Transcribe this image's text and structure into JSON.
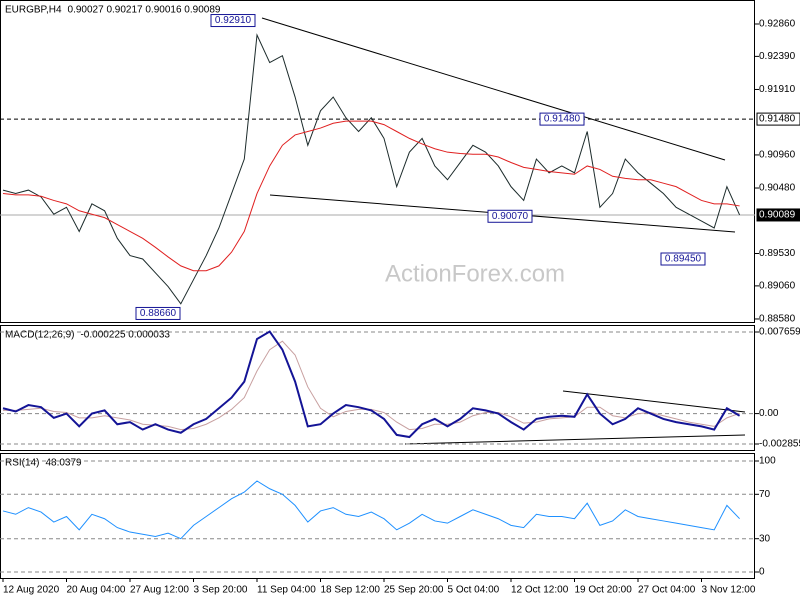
{
  "chart_data": [
    {
      "type": "line",
      "title": "EURGBP,H4",
      "subtitle": "0.90027 0.90217 0.90016 0.90089",
      "watermark": "ActionForex.com",
      "ylim": [
        0.88536,
        0.93208
      ],
      "yticks": [
        {
          "value": 0.8858,
          "label": "0.88580"
        },
        {
          "value": 0.8906,
          "label": "0.89060"
        },
        {
          "value": 0.8953,
          "label": "0.89530"
        },
        {
          "value": 0.9048,
          "label": "0.90480"
        },
        {
          "value": 0.9096,
          "label": "0.90960"
        },
        {
          "value": 0.9191,
          "label": "0.91910"
        },
        {
          "value": 0.9239,
          "label": "0.92390"
        },
        {
          "value": 0.9286,
          "label": "0.92860"
        }
      ],
      "price_markers": [
        {
          "value": 0.9148,
          "label": "0.91480"
        },
        {
          "value": 0.90089,
          "label": "0.90089"
        }
      ],
      "annotations": [
        {
          "value": 0.9291,
          "label": "0.92910"
        },
        {
          "value": 0.8866,
          "label": "0.88660"
        },
        {
          "value": 0.9148,
          "label": "0.91480"
        },
        {
          "value": 0.9007,
          "label": "0.90070"
        },
        {
          "value": 0.8945,
          "label": "0.89450"
        }
      ],
      "series": [
        {
          "color": "#1c2b2b",
          "values": [
            0.9045,
            0.904,
            0.9045,
            0.9035,
            0.901,
            0.902,
            0.8985,
            0.9025,
            0.9015,
            0.8975,
            0.895,
            0.8945,
            0.8925,
            0.8905,
            0.888,
            0.8915,
            0.895,
            0.899,
            0.904,
            0.909,
            0.927,
            0.923,
            0.924,
            0.918,
            0.911,
            0.916,
            0.918,
            0.915,
            0.913,
            0.915,
            0.912,
            0.905,
            0.91,
            0.912,
            0.908,
            0.906,
            0.9085,
            0.911,
            0.91,
            0.908,
            0.905,
            0.903,
            0.909,
            0.907,
            0.908,
            0.907,
            0.913,
            0.902,
            0.904,
            0.909,
            0.907,
            0.9055,
            0.904,
            0.902,
            0.901,
            0.9,
            0.899,
            0.905,
            0.90089
          ]
        },
        {
          "color": "#e02020",
          "values": [
            0.904,
            0.9038,
            0.9038,
            0.9036,
            0.903,
            0.9025,
            0.9015,
            0.901,
            0.9005,
            0.8995,
            0.8985,
            0.8975,
            0.8962,
            0.8948,
            0.8935,
            0.8928,
            0.8928,
            0.8935,
            0.8955,
            0.8985,
            0.904,
            0.908,
            0.911,
            0.9125,
            0.913,
            0.9135,
            0.9142,
            0.9145,
            0.9145,
            0.9145,
            0.914,
            0.913,
            0.912,
            0.9112,
            0.9105,
            0.91,
            0.9098,
            0.9097,
            0.9097,
            0.9093,
            0.9085,
            0.9078,
            0.9075,
            0.9072,
            0.907,
            0.9068,
            0.908,
            0.9075,
            0.9065,
            0.9062,
            0.906,
            0.906,
            0.9055,
            0.905,
            0.904,
            0.903,
            0.9025,
            0.9025,
            0.9022
          ]
        }
      ]
    },
    {
      "type": "line",
      "title": "MACD(12,26,9)",
      "subtitle": "-0.000225 0.000033",
      "ylim": [
        -0.003418,
        0.008316
      ],
      "yticks": [
        -0.002855,
        {
          "value": 0,
          "label": "0.00"
        },
        0.007659
      ],
      "series": [
        {
          "color": "#c8a0a0",
          "values": [
            0.0003,
            0.0003,
            0.0004,
            0.0005,
            0.0002,
            0.0001,
            -0.0004,
            -0.0004,
            -0.0002,
            -0.0004,
            -0.0006,
            -0.001,
            -0.0011,
            -0.0012,
            -0.0015,
            -0.0014,
            -0.001,
            -0.0004,
            0.0004,
            0.0015,
            0.004,
            0.006,
            0.0068,
            0.0055,
            0.0025,
            0.0005,
            -0.0003,
            0.0002,
            0.0004,
            0.0004,
            0.0001,
            -0.0008,
            -0.0015,
            -0.0014,
            -0.001,
            -0.001,
            -0.0008,
            -0.0002,
            0.0001,
            0.0001,
            -0.0003,
            -0.0009,
            -0.0008,
            -0.0005,
            -0.0004,
            -0.0003,
            0.0006,
            0.0006,
            -0.0002,
            -0.0004,
            0,
            0.0001,
            -0.0002,
            -0.0005,
            -0.0008,
            -0.001,
            -0.0012,
            -0.0004,
            3e-05
          ]
        },
        {
          "color": "#141496",
          "values": [
            0.0005,
            0.0002,
            0.0008,
            0.0006,
            -0.0004,
            0,
            -0.0012,
            0,
            0.0003,
            -0.001,
            -0.0008,
            -0.0015,
            -0.001,
            -0.0015,
            -0.0018,
            -0.001,
            -0.0005,
            0.0005,
            0.0015,
            0.003,
            0.007,
            0.0077,
            0.006,
            0.003,
            -0.0012,
            -0.001,
            0,
            0.0008,
            0.0006,
            0.0003,
            -0.0005,
            -0.002,
            -0.0022,
            -0.001,
            -0.0005,
            -0.0012,
            -0.0005,
            0.0005,
            0.0003,
            0,
            -0.0008,
            -0.0015,
            -0.0005,
            -0.0003,
            -0.0002,
            -0.0003,
            0.0018,
            0,
            -0.001,
            -0.0005,
            0.0005,
            0,
            -0.0005,
            -0.0008,
            -0.001,
            -0.0012,
            -0.0015,
            0.0005,
            -0.0002
          ]
        }
      ]
    },
    {
      "type": "line",
      "title": "RSI(14)",
      "subtitle": "48.0379",
      "ylim": [
        -5.4,
        107.2
      ],
      "yticks": [
        0,
        30,
        70,
        100
      ],
      "categories": [
        "12 Aug 2020",
        null,
        null,
        null,
        null,
        "20 Aug 04:00",
        null,
        null,
        null,
        null,
        "27 Aug 12:00",
        null,
        null,
        null,
        null,
        "3 Sep 20:00",
        null,
        null,
        null,
        null,
        "11 Sep 04:00",
        null,
        null,
        null,
        null,
        "18 Sep 12:00",
        null,
        null,
        null,
        null,
        "25 Sep 20:00",
        null,
        null,
        null,
        null,
        "5 Oct 04:00",
        null,
        null,
        null,
        null,
        "12 Oct 12:00",
        null,
        null,
        null,
        null,
        "19 Oct 20:00",
        null,
        null,
        null,
        null,
        "27 Oct 04:00",
        null,
        null,
        null,
        null,
        "3 Nov 12:00",
        null,
        null,
        null
      ],
      "series": [
        {
          "color": "#1e90ff",
          "values": [
            55,
            52,
            58,
            54,
            45,
            50,
            38,
            52,
            48,
            40,
            36,
            34,
            32,
            35,
            30,
            42,
            50,
            58,
            66,
            72,
            82,
            75,
            70,
            60,
            45,
            55,
            58,
            52,
            50,
            54,
            48,
            38,
            44,
            52,
            46,
            44,
            50,
            56,
            52,
            48,
            42,
            40,
            52,
            50,
            50,
            48,
            62,
            42,
            46,
            56,
            50,
            48,
            46,
            44,
            42,
            40,
            38,
            60,
            48.0379
          ]
        }
      ]
    }
  ]
}
